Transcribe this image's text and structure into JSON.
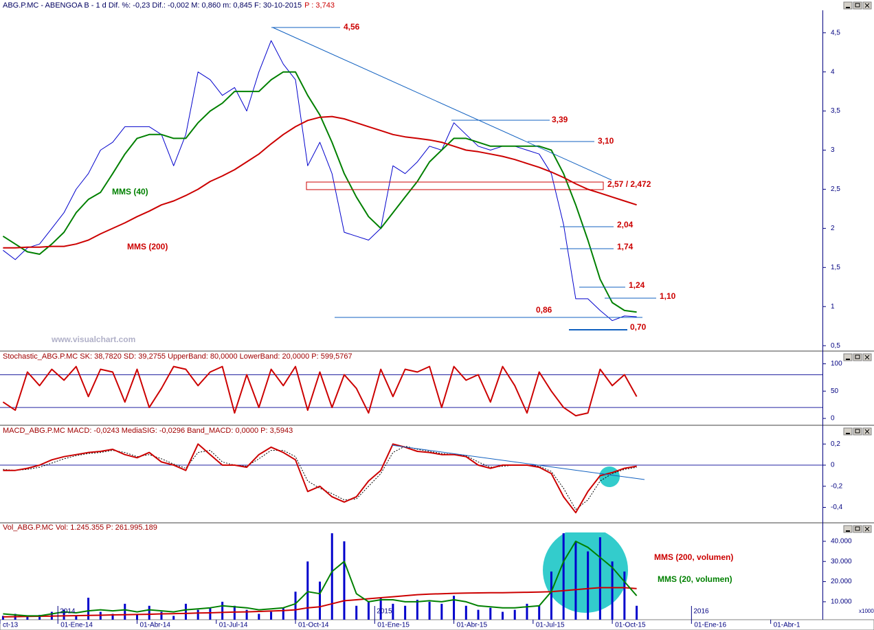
{
  "chart_data": [
    {
      "type": "line",
      "title": "ABG.P.MC - ABENGOA B - 1 d Dif. %: -0,23 Dif.: -0,002 M: 0,860 m: 0,845 F: 30-10-2015",
      "title_p": "P : 3,743",
      "x": [
        4,
        6,
        8,
        10,
        12,
        14,
        16,
        18,
        20,
        22,
        24,
        26,
        28,
        30,
        32,
        34,
        36,
        38,
        40,
        42,
        44,
        46,
        48,
        50,
        52,
        54,
        56,
        58,
        60,
        62,
        64,
        66,
        68,
        70,
        72,
        74,
        76,
        78,
        80,
        82,
        84,
        86,
        88,
        90,
        92,
        94,
        96,
        98,
        100,
        102,
        104,
        106,
        108
      ],
      "series": [
        {
          "color": "#0000cc",
          "values": [
            1.72,
            1.6,
            1.75,
            1.8,
            2.0,
            2.2,
            2.5,
            2.7,
            3.0,
            3.1,
            3.3,
            3.3,
            3.3,
            3.2,
            2.8,
            3.2,
            4.0,
            3.9,
            3.7,
            3.8,
            3.5,
            4.0,
            4.4,
            4.1,
            3.9,
            2.8,
            3.1,
            2.7,
            1.95,
            1.9,
            1.85,
            2.0,
            2.8,
            2.7,
            2.85,
            3.05,
            3.0,
            3.35,
            3.2,
            3.05,
            3.0,
            3.05,
            3.05,
            3.0,
            2.95,
            2.7,
            2.05,
            1.1,
            1.1,
            0.95,
            0.82,
            0.88,
            0.87
          ]
        },
        {
          "name": "MMS (40)",
          "color": "#008000",
          "values": [
            1.9,
            1.8,
            1.7,
            1.67,
            1.8,
            1.95,
            2.2,
            2.37,
            2.46,
            2.7,
            2.95,
            3.15,
            3.2,
            3.2,
            3.15,
            3.15,
            3.35,
            3.5,
            3.6,
            3.75,
            3.75,
            3.75,
            3.9,
            4.0,
            4.0,
            3.7,
            3.45,
            3.1,
            2.7,
            2.4,
            2.15,
            2.0,
            2.2,
            2.4,
            2.6,
            2.85,
            3.0,
            3.15,
            3.15,
            3.1,
            3.05,
            3.05,
            3.05,
            3.05,
            3.05,
            3.0,
            2.7,
            2.3,
            1.85,
            1.35,
            1.05,
            0.95,
            0.93
          ]
        },
        {
          "name": "MMS (200)",
          "color": "#cc0000",
          "values": [
            1.75,
            1.75,
            1.76,
            1.76,
            1.77,
            1.77,
            1.8,
            1.85,
            1.93,
            2.0,
            2.07,
            2.15,
            2.22,
            2.3,
            2.35,
            2.42,
            2.5,
            2.6,
            2.67,
            2.75,
            2.85,
            2.95,
            3.08,
            3.2,
            3.3,
            3.38,
            3.42,
            3.43,
            3.4,
            3.35,
            3.3,
            3.25,
            3.2,
            3.17,
            3.15,
            3.13,
            3.1,
            3.05,
            3.0,
            2.98,
            2.95,
            2.92,
            2.88,
            2.83,
            2.78,
            2.72,
            2.65,
            2.57,
            2.5,
            2.45,
            2.4,
            2.35,
            2.3
          ]
        }
      ],
      "ylim": [
        0.44,
        4.77
      ],
      "yticks": [
        {
          "value": 0.5,
          "label": "0,5"
        },
        1,
        {
          "value": 1.5,
          "label": "1,5"
        },
        2,
        {
          "value": 2.5,
          "label": "2,5"
        },
        3,
        {
          "value": 3.5,
          "label": "3,5"
        },
        4,
        {
          "value": 4.5,
          "label": "4,5"
        }
      ],
      "annotations": [
        {
          "text": "4,56",
          "color": "#cc0000"
        },
        {
          "text": "3,39",
          "color": "#cc0000"
        },
        {
          "text": "3,10",
          "color": "#cc0000"
        },
        {
          "text": "2,57 / 2,472",
          "color": "#cc0000"
        },
        {
          "text": "2,04",
          "color": "#cc0000"
        },
        {
          "text": "1,74",
          "color": "#cc0000"
        },
        {
          "text": "1,24",
          "color": "#cc0000"
        },
        {
          "text": "1,10",
          "color": "#cc0000"
        },
        {
          "text": "0,86",
          "color": "#cc0000"
        },
        {
          "text": "0,70",
          "color": "#cc0000"
        },
        {
          "text": "www.visualchart.com",
          "color": "#b0b0c8"
        }
      ]
    },
    {
      "type": "line",
      "title": "Stochastic_ABG.P.MC SK: 38,7820 SD: 39,2755 UpperBand: 80,0000 LowerBand: 20,0000 P: 599,5767",
      "x": [
        4,
        6,
        8,
        10,
        12,
        14,
        16,
        18,
        20,
        22,
        24,
        26,
        28,
        30,
        32,
        34,
        36,
        38,
        40,
        42,
        44,
        46,
        48,
        50,
        52,
        54,
        56,
        58,
        60,
        62,
        64,
        66,
        68,
        70,
        72,
        74,
        76,
        78,
        80,
        82,
        84,
        86,
        88,
        90,
        92,
        94,
        96,
        98,
        100,
        102,
        104,
        106,
        108
      ],
      "series": [
        {
          "color": "#cc0000",
          "values": [
            30,
            15,
            85,
            60,
            90,
            70,
            95,
            40,
            90,
            85,
            30,
            90,
            20,
            55,
            95,
            90,
            60,
            85,
            95,
            10,
            80,
            20,
            90,
            60,
            95,
            15,
            85,
            20,
            80,
            55,
            10,
            90,
            40,
            90,
            85,
            95,
            20,
            95,
            70,
            80,
            30,
            95,
            60,
            10,
            85,
            50,
            20,
            5,
            10,
            90,
            60,
            80,
            40
          ]
        }
      ],
      "bands": [
        80,
        20
      ],
      "ylim": [
        -10,
        112
      ],
      "yticks": [
        0,
        50,
        100
      ]
    },
    {
      "type": "line",
      "title": "MACD_ABG.P.MC MACD: -0,0243 MediaSIG: -0,0296 Band_MACD: 0,0000 P: 3,5943",
      "x": [
        4,
        6,
        8,
        10,
        12,
        14,
        16,
        18,
        20,
        22,
        24,
        26,
        28,
        30,
        32,
        34,
        36,
        38,
        40,
        42,
        44,
        46,
        48,
        50,
        52,
        54,
        56,
        58,
        60,
        62,
        64,
        66,
        68,
        70,
        72,
        74,
        76,
        78,
        80,
        82,
        84,
        86,
        88,
        90,
        92,
        94,
        96,
        98,
        100,
        102,
        104,
        106,
        108
      ],
      "series": [
        {
          "color": "#000000",
          "dash": true,
          "values": [
            -0.04,
            -0.05,
            -0.04,
            -0.02,
            0.02,
            0.06,
            0.09,
            0.11,
            0.12,
            0.14,
            0.12,
            0.08,
            0.1,
            0.06,
            0.01,
            -0.03,
            0.12,
            0.14,
            0.03,
            0.0,
            -0.01,
            0.06,
            0.14,
            0.14,
            0.08,
            -0.15,
            -0.22,
            -0.27,
            -0.33,
            -0.32,
            -0.2,
            -0.08,
            0.12,
            0.18,
            0.15,
            0.13,
            0.11,
            0.1,
            0.09,
            0.03,
            -0.02,
            -0.01,
            0.0,
            0.0,
            -0.01,
            -0.06,
            -0.22,
            -0.42,
            -0.33,
            -0.15,
            -0.08,
            -0.04,
            -0.02
          ]
        },
        {
          "color": "#cc0000",
          "values": [
            -0.05,
            -0.05,
            -0.03,
            0,
            0.05,
            0.08,
            0.1,
            0.12,
            0.13,
            0.15,
            0.1,
            0.07,
            0.12,
            0.03,
            0.0,
            -0.05,
            0.2,
            0.1,
            0.0,
            0.0,
            -0.02,
            0.1,
            0.17,
            0.12,
            0.05,
            -0.25,
            -0.2,
            -0.3,
            -0.35,
            -0.3,
            -0.15,
            -0.05,
            0.2,
            0.17,
            0.13,
            0.12,
            0.1,
            0.1,
            0.08,
            0.0,
            -0.03,
            0.0,
            0.0,
            0.0,
            -0.02,
            -0.08,
            -0.3,
            -0.45,
            -0.25,
            -0.1,
            -0.07,
            -0.03,
            -0.01
          ]
        }
      ],
      "ylim": [
        -0.54,
        0.28
      ],
      "yticks": [
        {
          "value": 0.2,
          "label": "0,2"
        },
        0,
        {
          "value": -0.2,
          "label": "-0,2"
        },
        {
          "value": -0.4,
          "label": "-0,4"
        }
      ]
    },
    {
      "type": "bar",
      "title": "Vol_ABG.P.MC Vol: 1.245.355 P: 261.995.189",
      "unit": "x1000",
      "x": [
        4,
        6,
        8,
        10,
        12,
        14,
        16,
        18,
        20,
        22,
        24,
        26,
        28,
        30,
        32,
        34,
        36,
        38,
        40,
        42,
        44,
        46,
        48,
        50,
        52,
        54,
        56,
        58,
        60,
        62,
        64,
        66,
        68,
        70,
        72,
        74,
        76,
        78,
        80,
        82,
        84,
        86,
        88,
        90,
        92,
        94,
        96,
        98,
        100,
        102,
        104,
        106,
        108
      ],
      "series": [
        {
          "color": "#0000cc",
          "values": [
            3000,
            4000,
            2500,
            3500,
            5000,
            6000,
            3000,
            12000,
            5000,
            4000,
            9000,
            4000,
            8000,
            5000,
            3000,
            9000,
            6000,
            7000,
            10000,
            8000,
            6000,
            4000,
            5000,
            7000,
            15000,
            30000,
            20000,
            44000,
            40000,
            8000,
            10000,
            12000,
            9000,
            8000,
            11000,
            10000,
            9000,
            13000,
            8000,
            6000,
            7000,
            5000,
            6000,
            9000,
            8000,
            25000,
            44000,
            40000,
            35000,
            42000,
            30000,
            25000,
            8000
          ]
        },
        {
          "type": "line",
          "name": "MMS (200, volumen)",
          "color": "#cc0000",
          "values": [
            2500,
            2600,
            2700,
            2800,
            2900,
            3000,
            3100,
            3200,
            3300,
            3500,
            3600,
            3700,
            3800,
            4000,
            4100,
            4200,
            4400,
            4500,
            4700,
            4900,
            5000,
            5200,
            5400,
            5600,
            6000,
            7000,
            7500,
            9000,
            10500,
            11000,
            11500,
            12000,
            12500,
            13000,
            13500,
            13800,
            14000,
            14200,
            14300,
            14400,
            14500,
            14500,
            14600,
            14700,
            14800,
            15000,
            15500,
            16000,
            16500,
            17000,
            17000,
            17000,
            16500
          ]
        },
        {
          "type": "line",
          "name": "MMS (20, volumen)",
          "color": "#008000",
          "values": [
            4000,
            3500,
            3000,
            3000,
            4000,
            5000,
            4500,
            5500,
            6000,
            5500,
            6000,
            5000,
            6000,
            5500,
            5000,
            6000,
            6500,
            7000,
            8000,
            7500,
            7000,
            6000,
            6500,
            7000,
            9000,
            15000,
            14000,
            25000,
            30000,
            14000,
            10000,
            11000,
            11000,
            10000,
            10000,
            10500,
            10000,
            11000,
            10000,
            8000,
            7500,
            7000,
            7000,
            7500,
            8000,
            15000,
            30000,
            40000,
            37000,
            32000,
            27000,
            20000,
            13000
          ]
        }
      ],
      "ylim": [
        1100,
        44400
      ],
      "yticks": [
        {
          "value": 10000,
          "label": "10.000"
        },
        {
          "value": 20000,
          "label": "20.000"
        },
        {
          "value": 30000,
          "label": "30.000"
        },
        {
          "value": 40000,
          "label": "40.000"
        }
      ],
      "year_labels": [
        "2014",
        "2015",
        "2016"
      ],
      "xlim": [
        3.5,
        138.5
      ],
      "xticks": [
        {
          "value": 3.5,
          "label": "ct-13"
        },
        {
          "value": 13,
          "label": "01-Ene-14"
        },
        {
          "value": 26,
          "label": "01-Abr-14"
        },
        {
          "value": 39,
          "label": "01-Jul-14"
        },
        {
          "value": 52,
          "label": "01-Oct-14"
        },
        {
          "value": 65,
          "label": "01-Ene-15"
        },
        {
          "value": 78,
          "label": "01-Abr-15"
        },
        {
          "value": 91,
          "label": "01-Jul-15"
        },
        {
          "value": 104,
          "label": "01-Oct-15"
        },
        {
          "value": 117,
          "label": "01-Ene-16"
        },
        {
          "value": 130,
          "label": "01-Abr-1"
        }
      ]
    }
  ]
}
